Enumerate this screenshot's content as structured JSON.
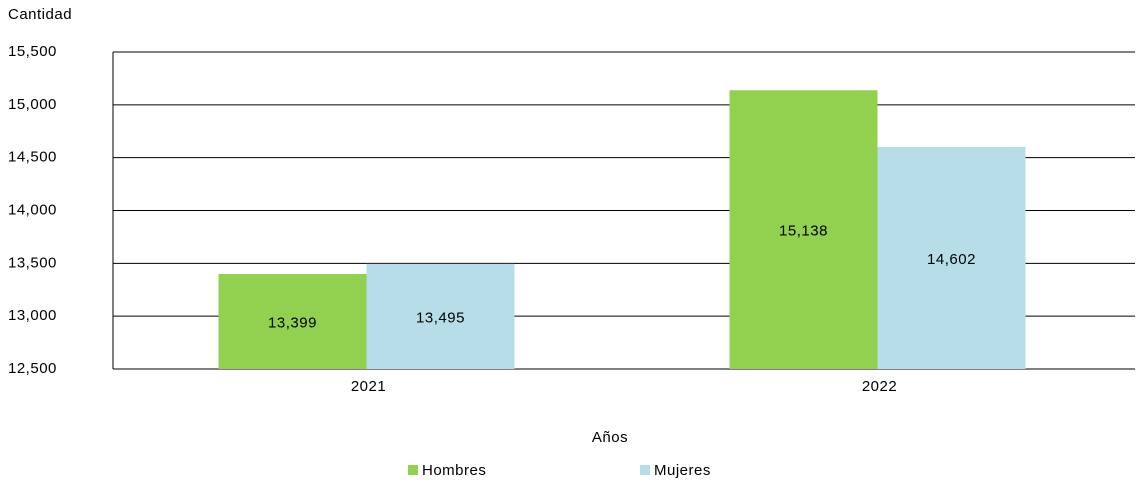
{
  "chart_data": {
    "type": "bar",
    "y_axis_label": "Cantidad",
    "x_axis_label": "Años",
    "categories": [
      "2021",
      "2022"
    ],
    "series": [
      {
        "name": "Hombres",
        "color": "#92d050",
        "values": [
          13399,
          15138
        ],
        "value_labels": [
          "13,399",
          "15,138"
        ]
      },
      {
        "name": "Mujeres",
        "color": "#b7dde8",
        "values": [
          13495,
          14602
        ],
        "value_labels": [
          "13,495",
          "14,602"
        ]
      }
    ],
    "ylim": [
      12500,
      15500
    ],
    "yticks": [
      {
        "value": 12500,
        "label": "12,500"
      },
      {
        "value": 13000,
        "label": "13,000"
      },
      {
        "value": 13500,
        "label": "13,500"
      },
      {
        "value": 14000,
        "label": "14,000"
      },
      {
        "value": 14500,
        "label": "14,500"
      },
      {
        "value": 15000,
        "label": "15,000"
      },
      {
        "value": 15500,
        "label": "15,500"
      }
    ],
    "grid": true,
    "legend": "bottom"
  }
}
